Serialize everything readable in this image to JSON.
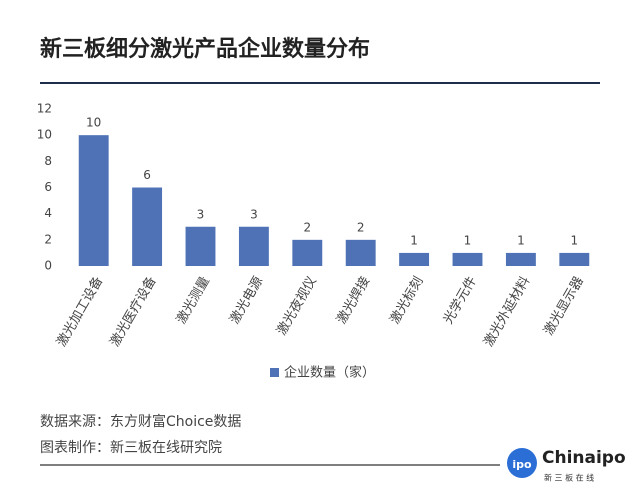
{
  "chart_data": {
    "type": "bar",
    "title": "新三板细分激光产品企业数量分布",
    "categories": [
      "激光加工设备",
      "激光医疗设备",
      "激光测量",
      "激光电源",
      "激光夜视仪",
      "激光焊接",
      "激光标刻",
      "光学元件",
      "激光外延材料",
      "激光显示器"
    ],
    "series": [
      {
        "name": "企业数量（家）",
        "color": "#4f72b6",
        "values": [
          10,
          6,
          3,
          3,
          2,
          2,
          1,
          1,
          1,
          1
        ]
      }
    ],
    "ylim": [
      0,
      12
    ],
    "yticks": [
      0,
      2,
      4,
      6,
      8,
      10,
      12
    ],
    "grid": false,
    "legend": "bottom"
  },
  "footer": {
    "source": "数据来源：东方财富Choice数据",
    "producer": "图表制作：新三板在线研究院"
  },
  "logo": {
    "ipo": "ipo",
    "brand": "Chinaipo",
    "sub": "新 三 板 在 线"
  }
}
